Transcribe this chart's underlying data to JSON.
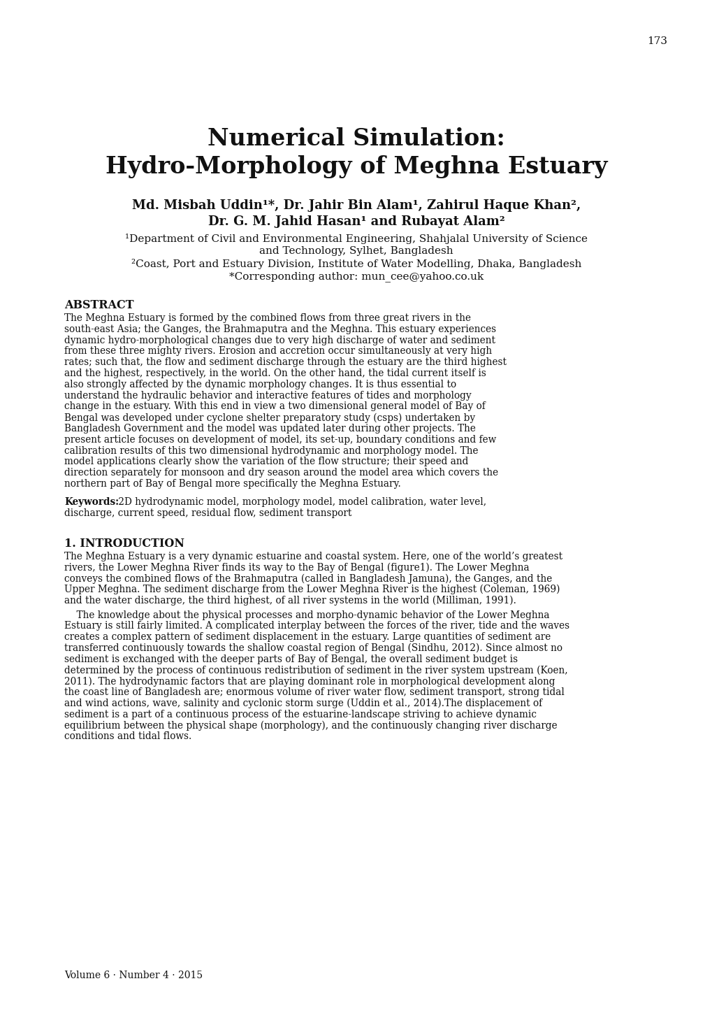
{
  "page_number": "173",
  "title_line1": "Numerical Simulation:",
  "title_line2": "Hydro-Morphology of Meghna Estuary",
  "authors_line1": "Md. Misbah Uddin¹*, Dr. Jahir Bin Alam¹, Zahirul Haque Khan²,",
  "authors_line2": "Dr. G. M. Jahid Hasan¹ and Rubayat Alam²",
  "affil1": "¹Department of Civil and Environmental Engineering, Shahjalal University of Science",
  "affil1b": "and Technology, Sylhet, Bangladesh",
  "affil2": "²Coast, Port and Estuary Division, Institute of Water Modelling, Dhaka, Bangladesh",
  "corresponding": "*Corresponding author: mun_cee@yahoo.co.uk",
  "abstract_title": "ABSTRACT",
  "keywords_label": "Keywords:",
  "keywords_rest": " 2D hydrodynamic model, morphology model, model calibration, water level,",
  "keywords_line2": "discharge, current speed, residual flow, sediment transport",
  "section1_title": "1. INTRODUCTION",
  "footer": "Volume 6 · Number 4 · 2015",
  "bg_color": "#ffffff",
  "text_color": "#111111",
  "abstract_lines": [
    "The Meghna Estuary is formed by the combined flows from three great rivers in the",
    "south-east Asia; the Ganges, the Brahmaputra and the Meghna. This estuary experiences",
    "dynamic hydro-morphological changes due to very high discharge of water and sediment",
    "from these three mighty rivers. Erosion and accretion occur simultaneously at very high",
    "rates; such that, the flow and sediment discharge through the estuary are the third highest",
    "and the highest, respectively, in the world. On the other hand, the tidal current itself is",
    "also strongly affected by the dynamic morphology changes. It is thus essential to",
    "understand the hydraulic behavior and interactive features of tides and morphology",
    "change in the estuary. With this end in view a two dimensional general model of Bay of",
    "Bengal was developed under cyclone shelter preparatory study (csps) undertaken by",
    "Bangladesh Government and the model was updated later during other projects. The",
    "present article focuses on development of model, its set-up, boundary conditions and few",
    "calibration results of this two dimensional hydrodynamic and morphology model. The",
    "model applications clearly show the variation of the flow structure; their speed and",
    "direction separately for monsoon and dry season around the model area which covers the",
    "northern part of Bay of Bengal more specifically the Meghna Estuary."
  ],
  "intro1_lines": [
    "The Meghna Estuary is a very dynamic estuarine and coastal system. Here, one of the world’s greatest",
    "rivers, the Lower Meghna River finds its way to the Bay of Bengal (figure1). The Lower Meghna",
    "conveys the combined flows of the Brahmaputra (called in Bangladesh Jamuna), the Ganges, and the",
    "Upper Meghna. The sediment discharge from the Lower Meghna River is the highest (Coleman, 1969)",
    "and the water discharge, the third highest, of all river systems in the world (Milliman, 1991)."
  ],
  "intro2_lines": [
    "    The knowledge about the physical processes and morpho-dynamic behavior of the Lower Meghna",
    "Estuary is still fairly limited. A complicated interplay between the forces of the river, tide and the waves",
    "creates a complex pattern of sediment displacement in the estuary. Large quantities of sediment are",
    "transferred continuously towards the shallow coastal region of Bengal (Sindhu, 2012). Since almost no",
    "sediment is exchanged with the deeper parts of Bay of Bengal, the overall sediment budget is",
    "determined by the process of continuous redistribution of sediment in the river system upstream (Koen,",
    "2011). The hydrodynamic factors that are playing dominant role in morphological development along",
    "the coast line of Bangladesh are; enormous volume of river water flow, sediment transport, strong tidal",
    "and wind actions, wave, salinity and cyclonic storm surge (Uddin et al., 2014).The displacement of",
    "sediment is a part of a continuous process of the estuarine-landscape striving to achieve dynamic",
    "equilibrium between the physical shape (morphology), and the continuously changing river discharge",
    "conditions and tidal flows."
  ]
}
